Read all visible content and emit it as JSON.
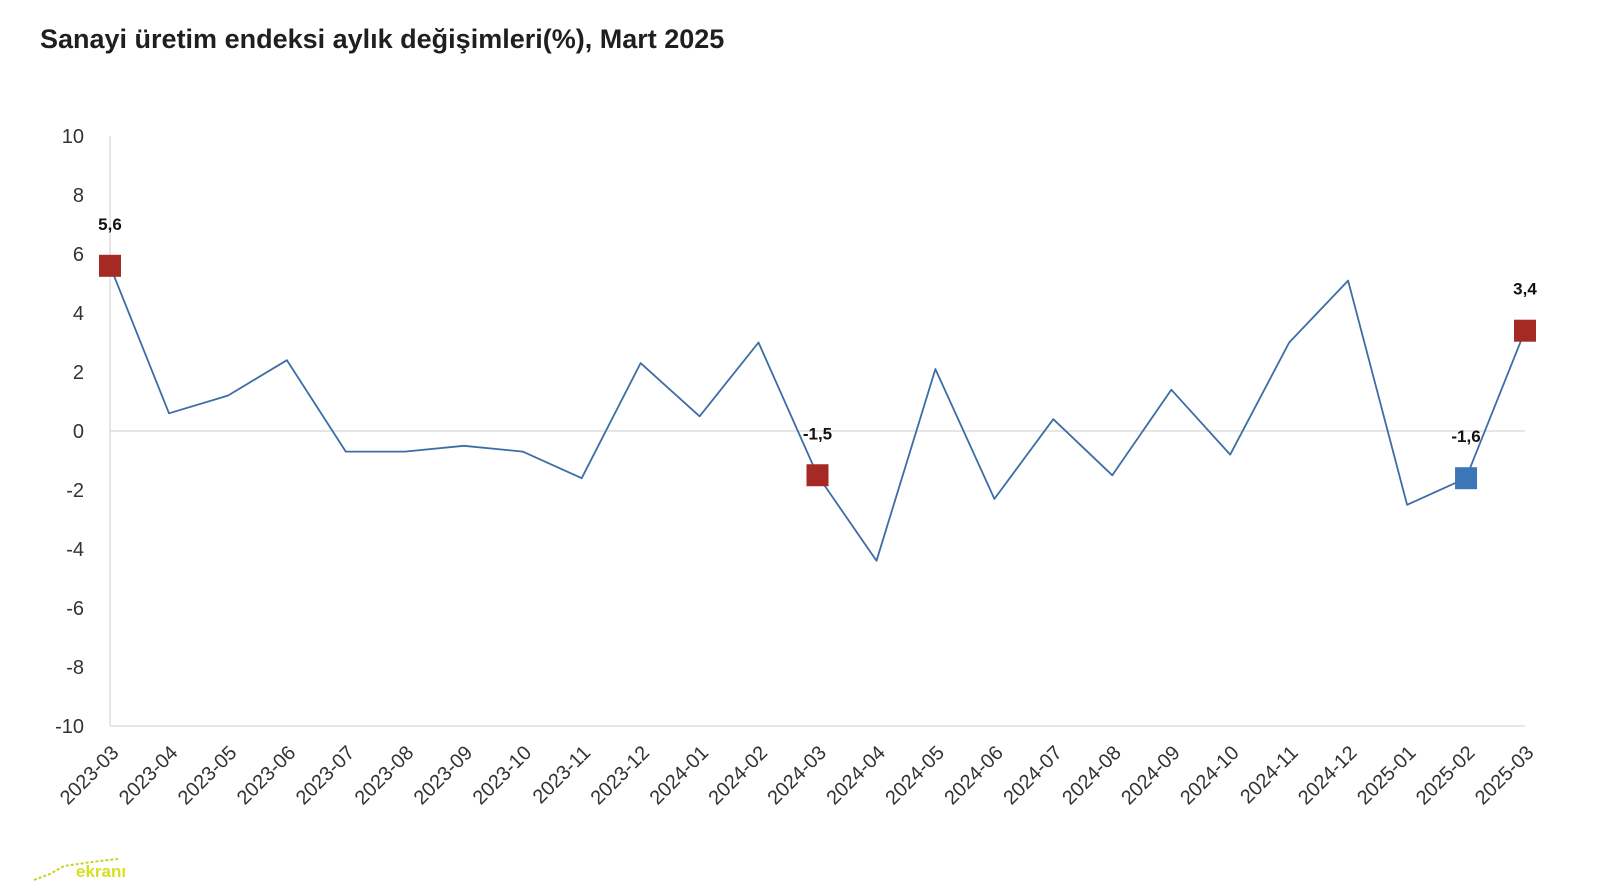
{
  "title": "Sanayi üretim endeksi aylık değişimleri(%), Mart 2025",
  "logo": {
    "text": "ekranı",
    "color": "#d6e021"
  },
  "chart_data": {
    "type": "line",
    "title": "Sanayi üretim endeksi aylık değişimleri(%), Mart 2025",
    "xlabel": "",
    "ylabel": "",
    "ylim": [
      -10,
      10
    ],
    "yticks": [
      10,
      8,
      6,
      4,
      2,
      0,
      -2,
      -4,
      -6,
      -8,
      -10
    ],
    "grid": false,
    "zero_line": true,
    "categories": [
      "2023-03",
      "2023-04",
      "2023-05",
      "2023-06",
      "2023-07",
      "2023-08",
      "2023-09",
      "2023-10",
      "2023-11",
      "2023-12",
      "2024-01",
      "2024-02",
      "2024-03",
      "2024-04",
      "2024-05",
      "2024-06",
      "2024-07",
      "2024-08",
      "2024-09",
      "2024-10",
      "2024-11",
      "2024-12",
      "2025-01",
      "2025-02",
      "2025-03"
    ],
    "series": [
      {
        "color": "#3c6ea5",
        "values": [
          5.6,
          0.6,
          1.2,
          2.4,
          -0.7,
          -0.7,
          -0.5,
          -0.7,
          -1.6,
          2.3,
          0.5,
          3.0,
          -1.5,
          -4.4,
          2.1,
          -2.3,
          0.4,
          -1.5,
          1.4,
          -0.8,
          3.0,
          5.1,
          -2.5,
          -1.6,
          3.4
        ]
      }
    ],
    "highlighted_points": [
      {
        "category": "2023-03",
        "value": 5.6,
        "label": "5,6",
        "color": "#a52a24"
      },
      {
        "category": "2024-03",
        "value": -1.5,
        "label": "-1,5",
        "color": "#a52a24"
      },
      {
        "category": "2025-02",
        "value": -1.6,
        "label": "-1,6",
        "color": "#3d76b8"
      },
      {
        "category": "2025-03",
        "value": 3.4,
        "label": "3,4",
        "color": "#a52a24"
      }
    ]
  }
}
